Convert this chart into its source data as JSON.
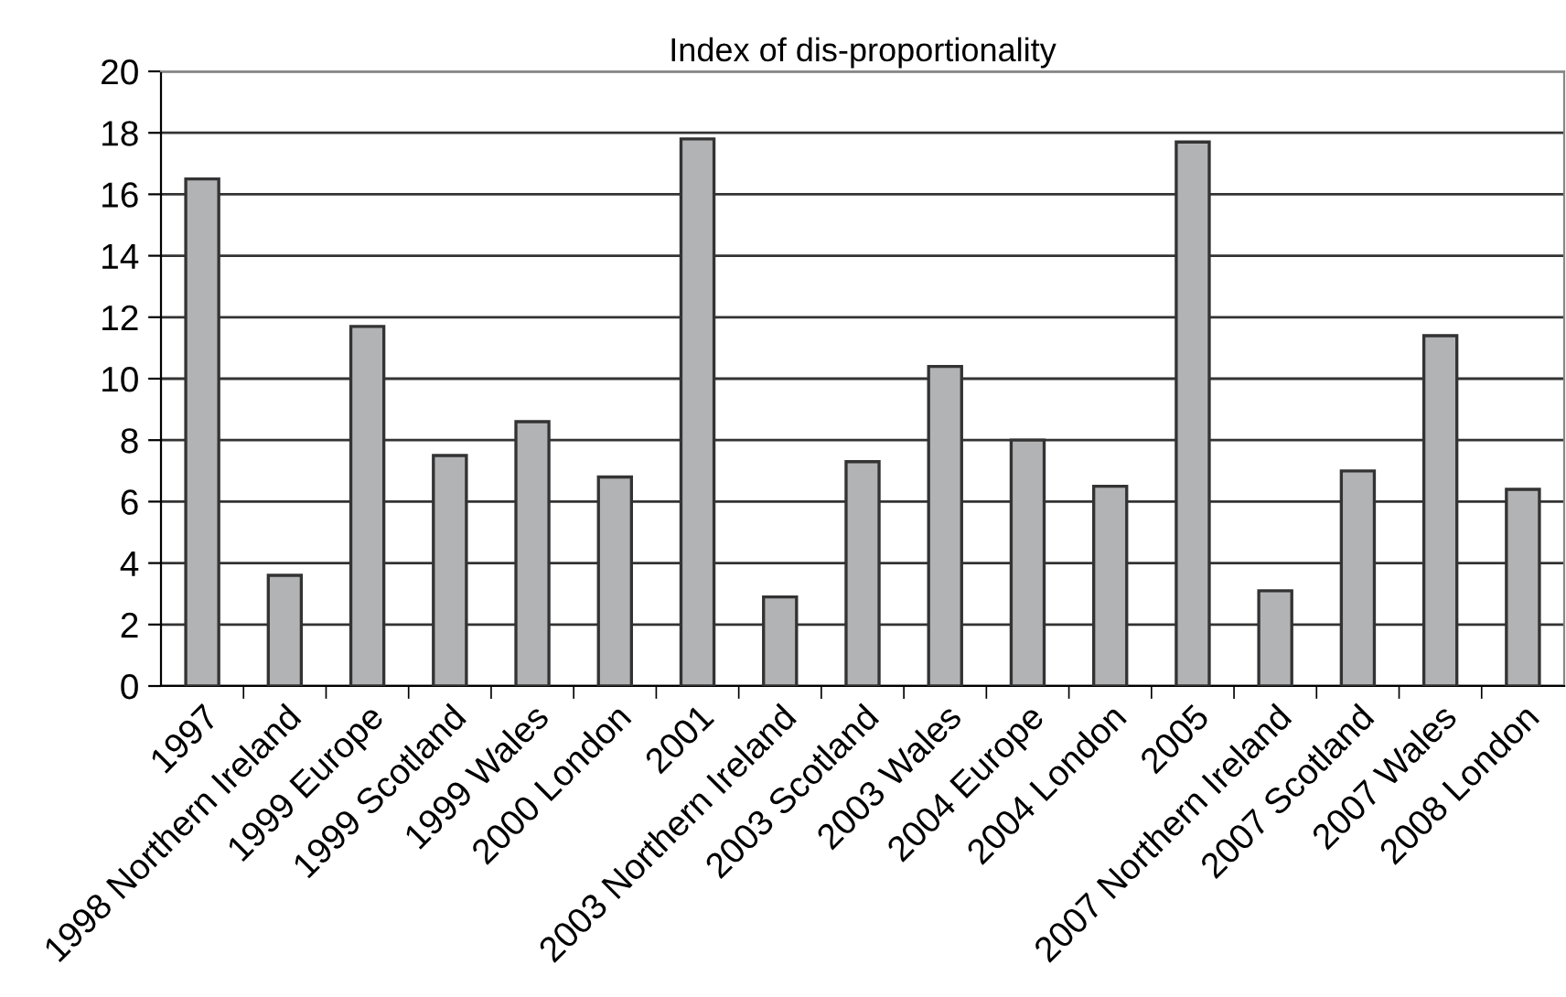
{
  "chart_data": {
    "type": "bar",
    "title": "Index of dis-proportionality",
    "categories": [
      "1997",
      "1998 Northern Ireland",
      "1999 Europe",
      "1999 Scotland",
      "1999 Wales",
      "2000 London",
      "2001",
      "2003 Northern Ireland",
      "2003 Scotland",
      "2003 Wales",
      "2004 Europe",
      "2004 London",
      "2005",
      "2007 Northern Ireland",
      "2007 Scotland",
      "2007 Wales",
      "2008 London"
    ],
    "values": [
      16.5,
      3.6,
      11.7,
      7.5,
      8.6,
      6.8,
      17.8,
      2.9,
      7.3,
      10.4,
      8.0,
      6.5,
      17.7,
      3.1,
      7.0,
      11.4,
      6.4
    ],
    "color": "#b2b3b5",
    "ylim": [
      0,
      20
    ],
    "yticks": [
      0,
      2,
      4,
      6,
      8,
      10,
      12,
      14,
      16,
      18,
      20
    ],
    "grid": "y"
  }
}
